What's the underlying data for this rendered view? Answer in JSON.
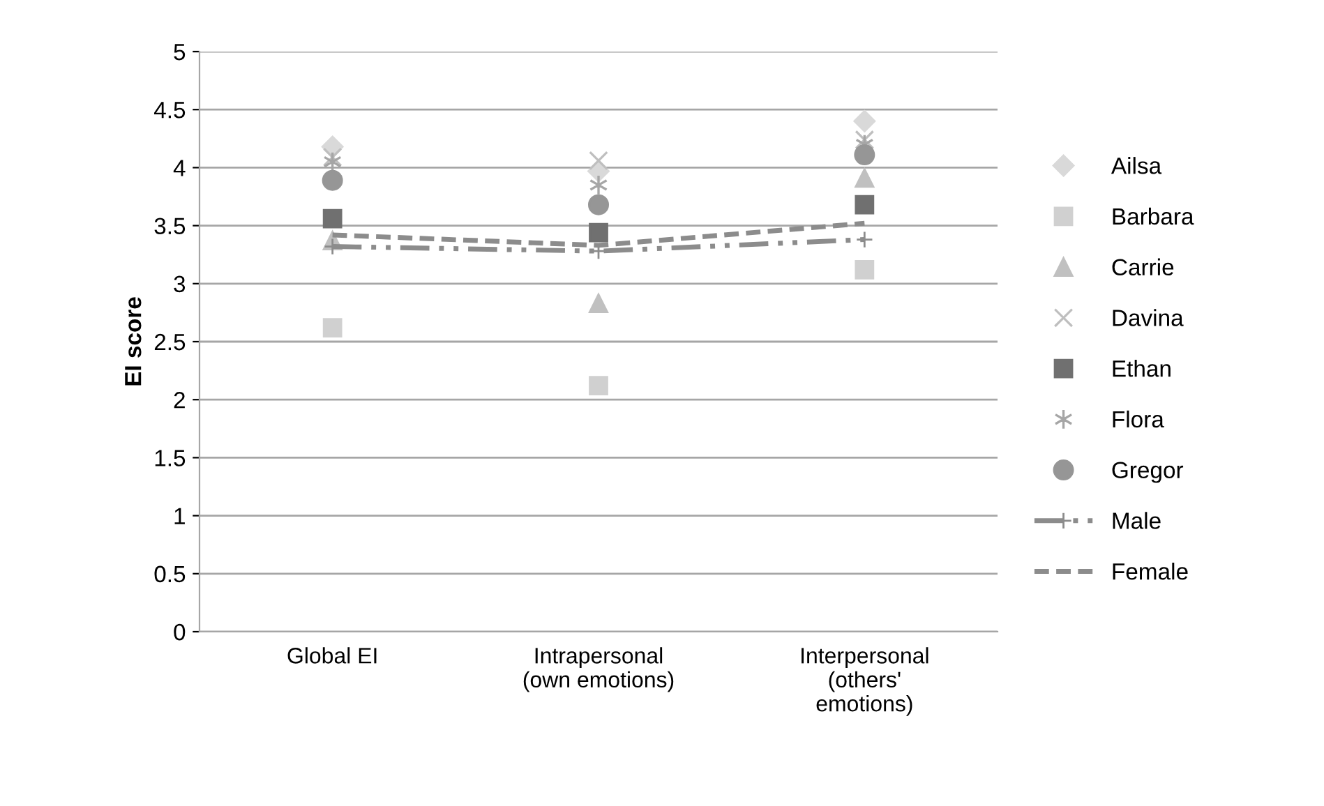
{
  "chart_data": {
    "type": "scatter",
    "ylabel": "EI score",
    "categories": [
      "Global EI",
      "Intrapersonal\n(own emotions)",
      "Interpersonal\n(others'\nemotions)"
    ],
    "ylim": [
      0,
      5
    ],
    "yticks": [
      0,
      0.5,
      1,
      1.5,
      2,
      2.5,
      3,
      3.5,
      4,
      4.5,
      5
    ],
    "grid": "y",
    "legend": "right",
    "series": [
      {
        "name": "Ailsa",
        "color": "#d9d9d9",
        "marker": "diamond",
        "values": [
          4.18,
          3.97,
          4.4
        ]
      },
      {
        "name": "Barbara",
        "color": "#d0d0d0",
        "marker": "square",
        "values": [
          2.62,
          2.12,
          3.12
        ]
      },
      {
        "name": "Carrie",
        "color": "#c0c0c0",
        "marker": "triangle",
        "values": [
          3.37,
          2.83,
          3.91
        ]
      },
      {
        "name": "Davina",
        "color": "#bfbfbf",
        "values": [
          4.09,
          4.06,
          4.24
        ]
      },
      {
        "name": "Ethan",
        "color": "#707070",
        "marker": "square",
        "values": [
          3.56,
          3.44,
          3.68
        ]
      },
      {
        "name": "Flora",
        "color": "#a6a6a6",
        "marker": "cross",
        "values": [
          4.05,
          3.85,
          4.2
        ]
      },
      {
        "name": "Gregor",
        "color": "#969696",
        "marker": "circle",
        "values": [
          3.89,
          3.68,
          4.11
        ]
      },
      {
        "name": "Male",
        "type": "line",
        "color": "#8c8c8c",
        "marker": "plus",
        "line_style": "dotted",
        "values": [
          3.32,
          3.28,
          3.38
        ]
      },
      {
        "name": "Female",
        "type": "line",
        "color": "#8c8c8c",
        "marker": "none",
        "line_style": "dashed",
        "values": [
          3.42,
          3.33,
          3.52
        ]
      }
    ]
  }
}
